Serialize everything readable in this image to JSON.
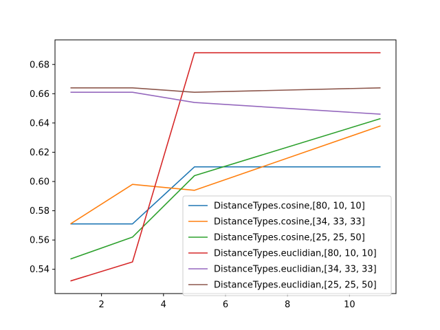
{
  "chart_data": {
    "type": "line",
    "title": "",
    "xlabel": "",
    "ylabel": "",
    "xlim": [
      0.5,
      11.5
    ],
    "ylim": [
      0.5234,
      0.6968
    ],
    "xticks": [
      2,
      4,
      6,
      8,
      10
    ],
    "yticks": [
      0.54,
      0.56,
      0.58,
      0.6,
      0.62,
      0.64,
      0.66,
      0.68
    ],
    "grid": false,
    "legend_position": "lower-right",
    "series": [
      {
        "name": "DistanceTypes.cosine,[80, 10, 10]",
        "color": "#1f77b4",
        "x": [
          1,
          3,
          5,
          11
        ],
        "y": [
          0.571,
          0.571,
          0.61,
          0.61
        ]
      },
      {
        "name": "DistanceTypes.cosine,[34, 33, 33]",
        "color": "#ff7f0e",
        "x": [
          1,
          3,
          5,
          11
        ],
        "y": [
          0.571,
          0.598,
          0.594,
          0.638
        ]
      },
      {
        "name": "DistanceTypes.cosine,[25, 25, 50]",
        "color": "#2ca02c",
        "x": [
          1,
          3,
          5,
          11
        ],
        "y": [
          0.547,
          0.562,
          0.604,
          0.643
        ]
      },
      {
        "name": "DistanceTypes.euclidian,[80, 10, 10]",
        "color": "#d62728",
        "x": [
          1,
          3,
          5,
          11
        ],
        "y": [
          0.532,
          0.545,
          0.688,
          0.688
        ]
      },
      {
        "name": "DistanceTypes.euclidian,[34, 33, 33]",
        "color": "#9467bd",
        "x": [
          1,
          3,
          5,
          11
        ],
        "y": [
          0.661,
          0.661,
          0.654,
          0.646
        ]
      },
      {
        "name": "DistanceTypes.euclidian,[25, 25, 50]",
        "color": "#8c564b",
        "x": [
          1,
          3,
          5,
          11
        ],
        "y": [
          0.664,
          0.664,
          0.661,
          0.664
        ]
      }
    ]
  }
}
